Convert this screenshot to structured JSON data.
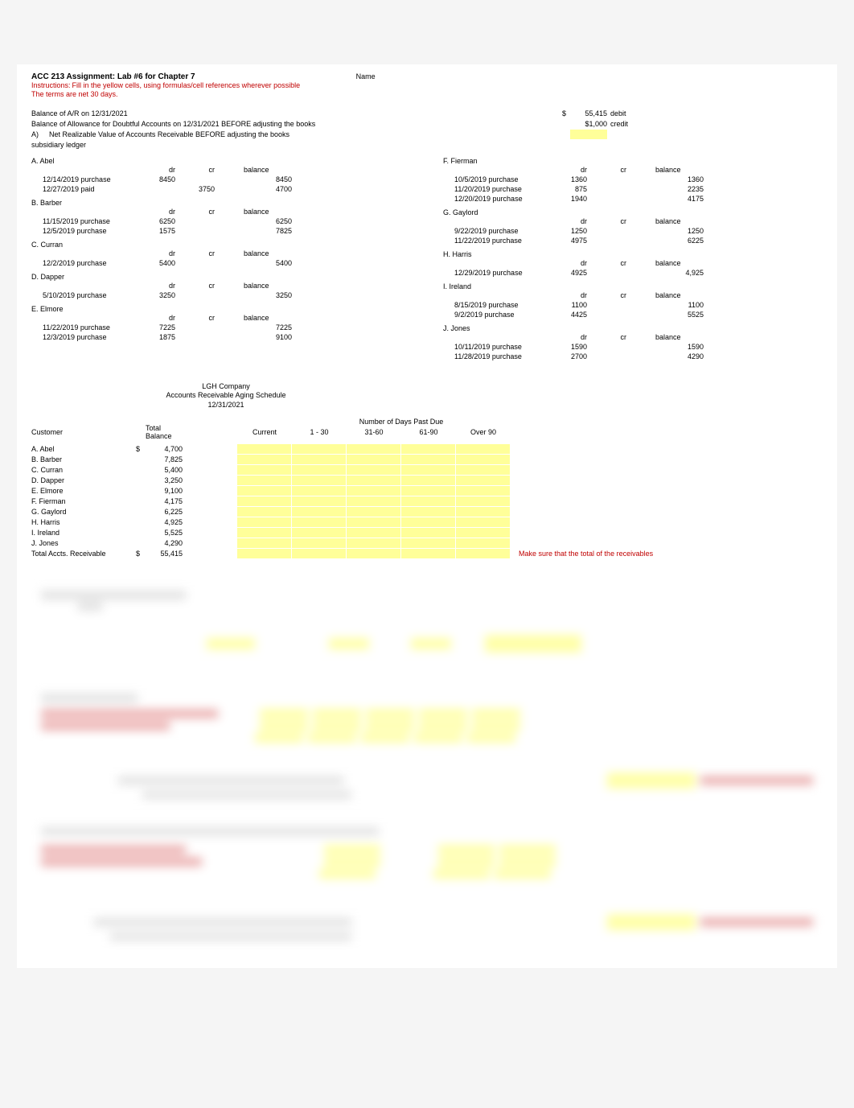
{
  "header": {
    "title": "ACC 213 Assignment: Lab #6 for Chapter 7",
    "nameLabel": "Name",
    "instrLabel": "Instructions:",
    "instrText": "Fill in the yellow cells, using formulas/cell references wherever possible",
    "terms": "The terms are net 30 days."
  },
  "balances": {
    "ar": {
      "label": "Balance of A/R on 12/31/2021",
      "dollar": "$",
      "amount": "55,415",
      "unit": "debit"
    },
    "allow": {
      "label": "Balance of Allowance for Doubtful Accounts on 12/31/2021 BEFORE adjusting the books",
      "amount": "$1,000",
      "unit": "credit"
    },
    "nrv": {
      "prefix": "A)",
      "label": "Net Realizable Value of Accounts Receivable BEFORE adjusting the books"
    }
  },
  "ledgerTitle": "subsidiary ledger",
  "cols": {
    "dr": "dr",
    "cr": "cr",
    "bal": "balance"
  },
  "customersLeft": [
    {
      "name": "A. Abel",
      "rows": [
        {
          "desc": "12/14/2019 purchase",
          "dr": "8450",
          "cr": "",
          "bal": "8450"
        },
        {
          "desc": "12/27/2019 paid",
          "dr": "",
          "cr": "3750",
          "bal": "4700"
        }
      ]
    },
    {
      "name": "B. Barber",
      "rows": [
        {
          "desc": "11/15/2019 purchase",
          "dr": "6250",
          "cr": "",
          "bal": "6250"
        },
        {
          "desc": "12/5/2019 purchase",
          "dr": "1575",
          "cr": "",
          "bal": "7825"
        }
      ]
    },
    {
      "name": "C. Curran",
      "rows": [
        {
          "desc": "12/2/2019 purchase",
          "dr": "5400",
          "cr": "",
          "bal": "5400"
        }
      ]
    },
    {
      "name": "D. Dapper",
      "rows": [
        {
          "desc": "5/10/2019 purchase",
          "dr": "3250",
          "cr": "",
          "bal": "3250"
        }
      ]
    },
    {
      "name": "E. Elmore",
      "rows": [
        {
          "desc": "11/22/2019 purchase",
          "dr": "7225",
          "cr": "",
          "bal": "7225"
        },
        {
          "desc": "12/3/2019 purchase",
          "dr": "1875",
          "cr": "",
          "bal": "9100"
        }
      ]
    }
  ],
  "customersRight": [
    {
      "name": "F. Fierman",
      "rows": [
        {
          "desc": "10/5/2019 purchase",
          "dr": "1360",
          "cr": "",
          "bal": "1360"
        },
        {
          "desc": "11/20/2019 purchase",
          "dr": "875",
          "cr": "",
          "bal": "2235"
        },
        {
          "desc": "12/20/2019 purchase",
          "dr": "1940",
          "cr": "",
          "bal": "4175"
        }
      ]
    },
    {
      "name": "G. Gaylord",
      "rows": [
        {
          "desc": "9/22/2019 purchase",
          "dr": "1250",
          "cr": "",
          "bal": "1250"
        },
        {
          "desc": "11/22/2019 purchase",
          "dr": "4975",
          "cr": "",
          "bal": "6225"
        }
      ]
    },
    {
      "name": "H. Harris",
      "rows": [
        {
          "desc": "12/29/2019 purchase",
          "dr": "4925",
          "cr": "",
          "bal": "4,925"
        }
      ]
    },
    {
      "name": "I. Ireland",
      "rows": [
        {
          "desc": "8/15/2019 purchase",
          "dr": "1100",
          "cr": "",
          "bal": "1100"
        },
        {
          "desc": "9/2/2019 purchase",
          "dr": "4425",
          "cr": "",
          "bal": "5525"
        }
      ]
    },
    {
      "name": "J. Jones",
      "rows": [
        {
          "desc": "10/11/2019 purchase",
          "dr": "1590",
          "cr": "",
          "bal": "1590"
        },
        {
          "desc": "11/28/2019 purchase",
          "dr": "2700",
          "cr": "",
          "bal": "4290"
        }
      ]
    }
  ],
  "aging": {
    "company": "LGH Company",
    "title": "Accounts Receivable Aging Schedule",
    "date": "12/31/2021",
    "superHeader": "Number of Days Past Due",
    "headers": {
      "customer": "Customer",
      "totalBal": "Total Balance",
      "current": "Current",
      "b1": "1 - 30",
      "b2": "31-60",
      "b3": "61-90",
      "b4": "Over 90"
    },
    "rows": [
      {
        "name": "A. Abel",
        "dollar": "$",
        "bal": "4,700"
      },
      {
        "name": "B. Barber",
        "dollar": "",
        "bal": "7,825"
      },
      {
        "name": "C. Curran",
        "dollar": "",
        "bal": "5,400"
      },
      {
        "name": "D. Dapper",
        "dollar": "",
        "bal": "3,250"
      },
      {
        "name": "E. Elmore",
        "dollar": "",
        "bal": "9,100"
      },
      {
        "name": "F. Fierman",
        "dollar": "",
        "bal": "4,175"
      },
      {
        "name": "G. Gaylord",
        "dollar": "",
        "bal": "6,225"
      },
      {
        "name": "H. Harris",
        "dollar": "",
        "bal": "4,925"
      },
      {
        "name": "I. Ireland",
        "dollar": "",
        "bal": "5,525"
      },
      {
        "name": "J. Jones",
        "dollar": "",
        "bal": "4,290"
      }
    ],
    "total": {
      "label": "Total Accts. Receivable",
      "dollar": "$",
      "bal": "55,415"
    },
    "note": "Make sure that the total of the receivables"
  },
  "colors": {
    "yellow": "#ffff99",
    "red": "#c00000",
    "text": "#000000",
    "bg": "#ffffff"
  }
}
